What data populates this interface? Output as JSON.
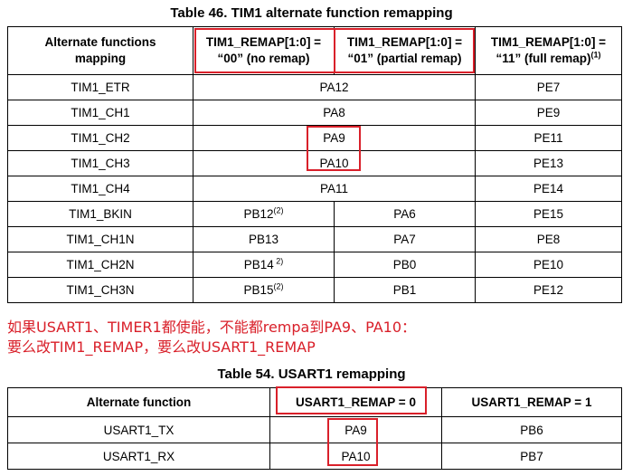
{
  "table46": {
    "title": "Table 46. TIM1 alternate function remapping",
    "headers": {
      "mapping_line1": "Alternate functions",
      "mapping_line2": "mapping",
      "col1_line1": "TIM1_REMAP[1:0] =",
      "col1_line2": "“00” (no remap)",
      "col2_line1": "TIM1_REMAP[1:0] =",
      "col2_line2": "“01” (partial remap)",
      "col3_line1": "TIM1_REMAP[1:0] =",
      "col3_line2": "“11” (full remap)",
      "col3_note": "(1)"
    },
    "rows": [
      {
        "name": "TIM1_ETR",
        "shared": "PA12",
        "full": "PE7"
      },
      {
        "name": "TIM1_CH1",
        "shared": "PA8",
        "full": "PE9"
      },
      {
        "name": "TIM1_CH2",
        "shared": "PA9",
        "full": "PE11"
      },
      {
        "name": "TIM1_CH3",
        "shared": "PA10",
        "full": "PE13"
      },
      {
        "name": "TIM1_CH4",
        "shared": "PA11",
        "full": "PE14"
      },
      {
        "name": "TIM1_BKIN",
        "no_remap": "PB12",
        "no_remap_note": "(2)",
        "partial": "PA6",
        "full": "PE15"
      },
      {
        "name": "TIM1_CH1N",
        "no_remap": "PB13",
        "partial": "PA7",
        "full": "PE8"
      },
      {
        "name": "TIM1_CH2N",
        "no_remap": "PB14",
        "no_remap_note": " 2)",
        "partial": "PB0",
        "full": "PE10"
      },
      {
        "name": "TIM1_CH3N",
        "no_remap": "PB15",
        "no_remap_note": "(2)",
        "partial": "PB1",
        "full": "PE12"
      }
    ]
  },
  "note": {
    "line1": "如果USART1、TIMER1都使能，不能都rempa到PA9、PA10：",
    "line2": "要么改TIM1_REMAP，要么改USART1_REMAP"
  },
  "table54": {
    "title": "Table 54. USART1 remapping",
    "headers": {
      "function": "Alternate function",
      "remap0": "USART1_REMAP = 0",
      "remap1": "USART1_REMAP = 1"
    },
    "rows": [
      {
        "name": "USART1_TX",
        "remap0": "PA9",
        "remap1": "PB6"
      },
      {
        "name": "USART1_RX",
        "remap0": "PA10",
        "remap1": "PB7"
      }
    ]
  },
  "colors": {
    "highlight": "#d9202a",
    "note_text": "#d9202a"
  }
}
